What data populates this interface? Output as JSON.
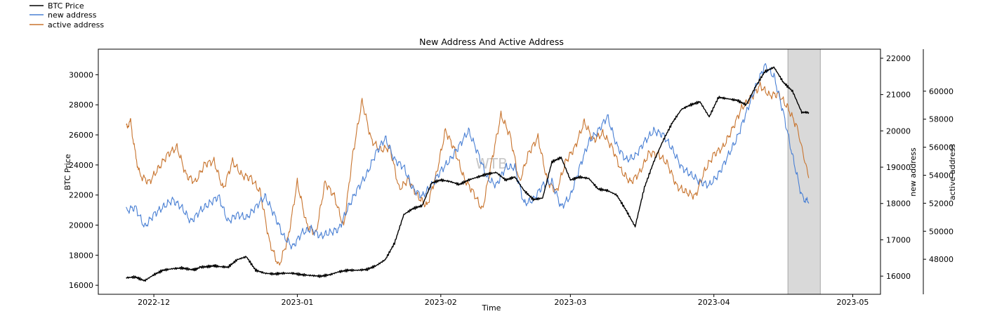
{
  "chart_data": {
    "type": "line",
    "title": "New Address And Active Address",
    "xlabel": "Time",
    "x_ticks": [
      "2022-12",
      "2023-01",
      "2023-02",
      "2023-03",
      "2023-04",
      "2023-05"
    ],
    "x_tick_days": [
      6,
      37,
      68,
      96,
      127,
      157
    ],
    "x_range_days": [
      -6,
      163
    ],
    "watermark": "WTB",
    "highlight_span_days": [
      143,
      150
    ],
    "axes": {
      "left": {
        "label": "BTC Price",
        "ylim": [
          15400,
          31700
        ],
        "ticks": [
          16000,
          18000,
          20000,
          22000,
          24000,
          26000,
          28000,
          30000
        ]
      },
      "right1": {
        "label": "new address",
        "ylim": [
          15500,
          22250
        ],
        "ticks": [
          16000,
          17000,
          18000,
          19000,
          20000,
          21000,
          22000
        ]
      },
      "right2": {
        "label": "active address",
        "ylim": [
          45500,
          63000
        ],
        "ticks": [
          48000,
          50000,
          52000,
          54000,
          56000,
          58000,
          60000
        ]
      }
    },
    "series": [
      {
        "name": "BTC Price",
        "color": "#000000",
        "axis": "left",
        "x": [
          0,
          2,
          4,
          6,
          8,
          10,
          12,
          14,
          15,
          16,
          18,
          19,
          20,
          22,
          24,
          26,
          28,
          30,
          32,
          34,
          36,
          38,
          40,
          42,
          44,
          46,
          48,
          50,
          52,
          54,
          56,
          58,
          60,
          62,
          64,
          66,
          68,
          70,
          72,
          74,
          76,
          78,
          80,
          82,
          84,
          86,
          88,
          90,
          92,
          94,
          96,
          98,
          100,
          102,
          104,
          106,
          108,
          110,
          112,
          114,
          116,
          118,
          120,
          122,
          124,
          126,
          128,
          130,
          132,
          134,
          136,
          138,
          140,
          142,
          144,
          146,
          147.5
        ],
        "values": [
          16500,
          16550,
          16300,
          16700,
          17000,
          17100,
          17150,
          17050,
          17050,
          17200,
          17250,
          17300,
          17250,
          17200,
          17700,
          17900,
          17000,
          16800,
          16750,
          16800,
          16800,
          16700,
          16650,
          16600,
          16700,
          16900,
          17000,
          17000,
          17050,
          17300,
          17700,
          18800,
          20700,
          21100,
          21300,
          22800,
          23000,
          22900,
          22700,
          23000,
          23200,
          23400,
          23500,
          23000,
          23200,
          22300,
          21700,
          21800,
          24200,
          24500,
          23000,
          23200,
          23100,
          22400,
          22300,
          22000,
          21000,
          19900,
          22500,
          24200,
          25600,
          26800,
          27700,
          28000,
          28200,
          27200,
          28500,
          28400,
          28300,
          28000,
          29200,
          30200,
          30500,
          29500,
          28900,
          27500,
          27500
        ]
      },
      {
        "name": "new address",
        "color": "#4a80d4",
        "axis": "right1",
        "x": [
          0,
          2,
          4,
          6,
          8,
          10,
          12,
          14,
          16,
          18,
          20,
          22,
          24,
          26,
          28,
          30,
          32,
          34,
          36,
          38,
          40,
          42,
          44,
          46,
          48,
          50,
          52,
          54,
          56,
          58,
          60,
          62,
          64,
          66,
          68,
          70,
          72,
          74,
          76,
          78,
          80,
          82,
          84,
          86,
          88,
          90,
          92,
          94,
          96,
          98,
          100,
          102,
          104,
          106,
          108,
          110,
          112,
          114,
          116,
          118,
          120,
          122,
          124,
          126,
          128,
          130,
          132,
          134,
          136,
          138,
          140,
          142,
          144,
          146,
          147.5
        ],
        "values": [
          17800,
          17900,
          17350,
          17700,
          17900,
          18100,
          17900,
          17500,
          17800,
          18000,
          18200,
          17500,
          17700,
          17600,
          17900,
          18200,
          17700,
          17100,
          16800,
          17200,
          17300,
          17100,
          17200,
          17300,
          17900,
          18400,
          18800,
          19400,
          19800,
          19200,
          19000,
          18400,
          18200,
          18500,
          18900,
          19200,
          19600,
          20000,
          19400,
          18700,
          18500,
          19000,
          19000,
          18000,
          18100,
          18500,
          18600,
          17900,
          18200,
          19000,
          19700,
          20000,
          20400,
          19600,
          19200,
          19300,
          19700,
          20000,
          19900,
          19500,
          19000,
          18800,
          18600,
          18500,
          18800,
          19300,
          19800,
          20500,
          21200,
          21800,
          21500,
          20500,
          19300,
          18200,
          18000
        ]
      },
      {
        "name": "active address",
        "color": "#c8742e",
        "axis": "right2",
        "x": [
          0,
          1,
          2,
          3,
          5,
          7,
          9,
          11,
          13,
          15,
          17,
          19,
          21,
          23,
          25,
          27,
          29,
          31,
          33,
          35,
          37,
          39,
          41,
          43,
          45,
          47,
          49,
          51,
          53,
          55,
          57,
          59,
          61,
          63,
          65,
          67,
          69,
          71,
          73,
          75,
          77,
          79,
          81,
          83,
          85,
          87,
          89,
          91,
          93,
          95,
          97,
          99,
          101,
          103,
          105,
          107,
          109,
          111,
          113,
          115,
          117,
          119,
          121,
          123,
          125,
          127,
          129,
          131,
          133,
          135,
          137,
          139,
          141,
          143,
          145,
          147.5
        ],
        "values": [
          57500,
          57800,
          55500,
          54000,
          53500,
          54500,
          55500,
          56000,
          54000,
          53500,
          54800,
          55000,
          53000,
          55000,
          54000,
          53800,
          52800,
          49200,
          47500,
          49500,
          53500,
          50500,
          49800,
          53500,
          52500,
          50300,
          55500,
          59300,
          56500,
          55800,
          56000,
          53000,
          53700,
          52500,
          51800,
          54000,
          57200,
          55800,
          53800,
          52800,
          51500,
          55000,
          58300,
          56800,
          53500,
          55600,
          56700,
          53600,
          52800,
          55000,
          56000,
          57800,
          56500,
          57000,
          56000,
          54300,
          53500,
          54200,
          55600,
          55500,
          54800,
          53200,
          52800,
          52500,
          54300,
          55500,
          56000,
          57300,
          58800,
          59500,
          60400,
          59700,
          59800,
          58800,
          57400,
          53800
        ]
      }
    ],
    "legend": [
      "BTC Price",
      "new address",
      "active address"
    ],
    "legend_position": "top-left (outside axes)"
  }
}
